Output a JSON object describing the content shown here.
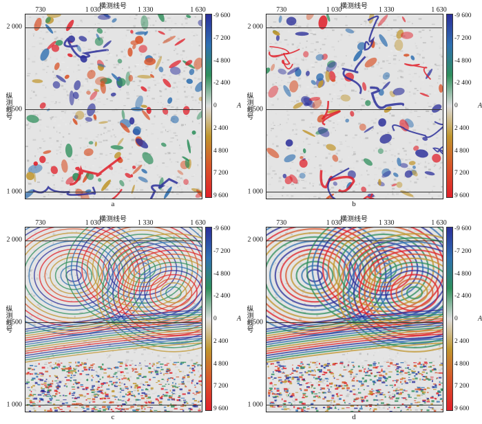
{
  "axis": {
    "xlabel": "横测线号",
    "ylabel": "纵测线号",
    "xticks": [
      "730",
      "1 030",
      "1 330",
      "1 630"
    ],
    "yticks": [
      "2 000",
      "1 500",
      "1 000"
    ],
    "colorbar_label": "A",
    "colorbar_ticks": [
      "-9 600",
      "-7 200",
      "-4 800",
      "-2 400",
      "0",
      "2 400",
      "4 800",
      "7 200",
      "9 600"
    ]
  },
  "colors": {
    "neg_high": "#2b2f9a",
    "neg_mid": "#2f6fb0",
    "neg_low": "#2f8f5c",
    "zero": "#dcdcdc",
    "pos_low": "#c0962e",
    "pos_mid": "#d8542a",
    "pos_high": "#e0202a"
  },
  "panels": [
    {
      "id": "a",
      "label": "a",
      "pattern": "amplitude-patches"
    },
    {
      "id": "b",
      "label": "b",
      "pattern": "amplitude-channels"
    },
    {
      "id": "c",
      "label": "c",
      "pattern": "folded-strata"
    },
    {
      "id": "d",
      "label": "d",
      "pattern": "folded-strata-enhanced"
    }
  ]
}
